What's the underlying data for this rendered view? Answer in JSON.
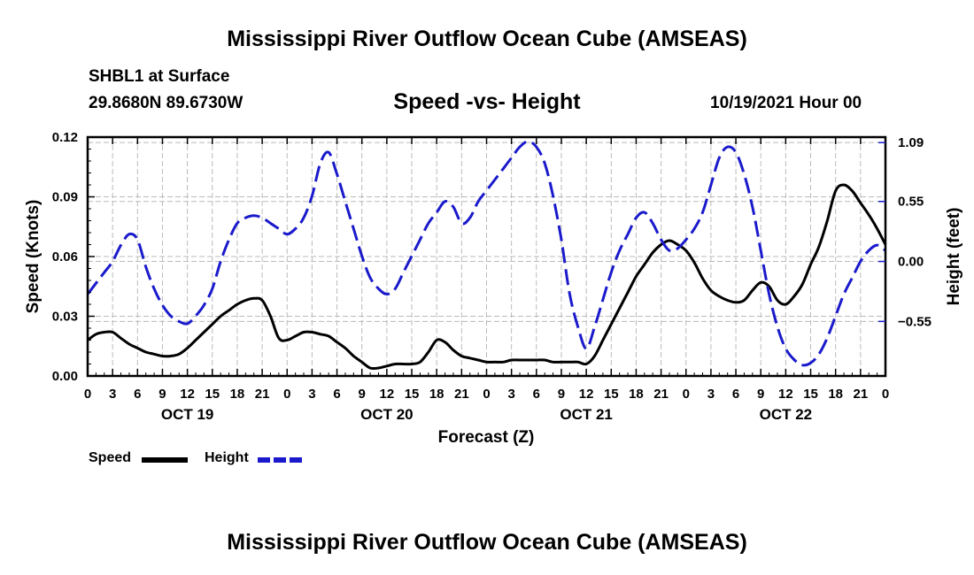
{
  "header": {
    "main_title": "Mississippi River Outflow Ocean Cube (AMSEAS)",
    "station": "SHBL1 at Surface",
    "coords": "29.8680N  89.6730W",
    "date": "10/19/2021 Hour 00"
  },
  "footer": {
    "title": "Mississippi River Outflow Ocean Cube (AMSEAS)"
  },
  "legend": {
    "speed_label": "Speed",
    "height_label": "Height"
  },
  "chart_data": {
    "type": "line",
    "title": "Speed -vs- Height",
    "xlabel": "Forecast (Z)",
    "ylabel": "Speed (Knots)",
    "y2label": "Height (feet)",
    "xlim": [
      0,
      96
    ],
    "ylim": [
      0,
      0.12
    ],
    "y2lim": [
      -1.05,
      1.14
    ],
    "x_ticks": [
      0,
      3,
      6,
      9,
      12,
      15,
      18,
      21,
      24,
      27,
      30,
      33,
      36,
      39,
      42,
      45,
      48,
      51,
      54,
      57,
      60,
      63,
      66,
      69,
      72,
      75,
      78,
      81,
      84,
      87,
      90,
      93,
      96
    ],
    "x_tick_labels": [
      "0",
      "3",
      "6",
      "9",
      "12",
      "15",
      "18",
      "21",
      "0",
      "3",
      "6",
      "9",
      "12",
      "15",
      "18",
      "21",
      "0",
      "3",
      "6",
      "9",
      "12",
      "15",
      "18",
      "21",
      "0",
      "3",
      "6",
      "9",
      "12",
      "15",
      "18",
      "21",
      "0"
    ],
    "day_labels": [
      {
        "x": 12,
        "label": "OCT 19"
      },
      {
        "x": 36,
        "label": "OCT 20"
      },
      {
        "x": 60,
        "label": "OCT 21"
      },
      {
        "x": 84,
        "label": "OCT 22"
      }
    ],
    "y_ticks": [
      0,
      0.03,
      0.06,
      0.09,
      0.12
    ],
    "y_tick_labels": [
      "0.00",
      "0.03",
      "0.06",
      "0.09",
      "0.12"
    ],
    "y2_ticks": [
      -0.55,
      0,
      0.55,
      1.09
    ],
    "y2_tick_labels": [
      "−0.55",
      "0.00",
      "0.55",
      "1.09"
    ],
    "grid": true,
    "colors": {
      "speed": "#000000",
      "height": "#1a1acc"
    },
    "series": [
      {
        "name": "Speed",
        "axis": "left",
        "x": [
          0,
          1,
          2,
          3,
          4,
          5,
          6,
          7,
          8,
          9,
          10,
          11,
          12,
          13,
          14,
          15,
          16,
          17,
          18,
          19,
          20,
          21,
          22,
          23,
          24,
          25,
          26,
          27,
          28,
          29,
          30,
          31,
          32,
          33,
          34,
          35,
          36,
          37,
          38,
          39,
          40,
          41,
          42,
          43,
          44,
          45,
          46,
          47,
          48,
          49,
          50,
          51,
          52,
          53,
          54,
          55,
          56,
          57,
          58,
          59,
          60,
          61,
          62,
          63,
          64,
          65,
          66,
          67,
          68,
          69,
          70,
          71,
          72,
          73,
          74,
          75,
          76,
          77,
          78,
          79,
          80,
          81,
          82,
          83,
          84,
          85,
          86,
          87,
          88,
          89,
          90,
          91,
          92,
          93,
          94,
          95,
          96
        ],
        "values": [
          0.018,
          0.021,
          0.022,
          0.022,
          0.019,
          0.016,
          0.014,
          0.012,
          0.011,
          0.01,
          0.01,
          0.011,
          0.014,
          0.018,
          0.022,
          0.026,
          0.03,
          0.033,
          0.036,
          0.038,
          0.039,
          0.038,
          0.03,
          0.019,
          0.018,
          0.02,
          0.022,
          0.022,
          0.021,
          0.02,
          0.017,
          0.014,
          0.01,
          0.007,
          0.004,
          0.004,
          0.005,
          0.006,
          0.006,
          0.006,
          0.007,
          0.012,
          0.018,
          0.017,
          0.013,
          0.01,
          0.009,
          0.008,
          0.007,
          0.007,
          0.007,
          0.008,
          0.008,
          0.008,
          0.008,
          0.008,
          0.007,
          0.007,
          0.007,
          0.007,
          0.006,
          0.01,
          0.018,
          0.026,
          0.034,
          0.042,
          0.05,
          0.056,
          0.062,
          0.066,
          0.068,
          0.066,
          0.063,
          0.057,
          0.049,
          0.043,
          0.04,
          0.038,
          0.037,
          0.038,
          0.043,
          0.047,
          0.045,
          0.038,
          0.036,
          0.04,
          0.046,
          0.056,
          0.065,
          0.078,
          0.093,
          0.096,
          0.093,
          0.087,
          0.081,
          0.074,
          0.066
        ]
      },
      {
        "name": "Height",
        "axis": "right",
        "x": [
          0,
          1,
          2,
          3,
          4,
          5,
          6,
          7,
          8,
          9,
          10,
          11,
          12,
          13,
          14,
          15,
          16,
          17,
          18,
          19,
          20,
          21,
          22,
          23,
          24,
          25,
          26,
          27,
          28,
          29,
          30,
          31,
          32,
          33,
          34,
          35,
          36,
          37,
          38,
          39,
          40,
          41,
          42,
          43,
          44,
          45,
          46,
          47,
          48,
          49,
          50,
          51,
          52,
          53,
          54,
          55,
          56,
          57,
          58,
          59,
          60,
          61,
          62,
          63,
          64,
          65,
          66,
          67,
          68,
          69,
          70,
          71,
          72,
          73,
          74,
          75,
          76,
          77,
          78,
          79,
          80,
          81,
          82,
          83,
          84,
          85,
          86,
          87,
          88,
          89,
          90,
          91,
          92,
          93,
          94,
          95,
          96
        ],
        "values": [
          -0.3,
          -0.2,
          -0.1,
          0.0,
          0.15,
          0.25,
          0.2,
          -0.05,
          -0.25,
          -0.4,
          -0.5,
          -0.55,
          -0.57,
          -0.5,
          -0.4,
          -0.25,
          0.0,
          0.2,
          0.35,
          0.4,
          0.42,
          0.4,
          0.35,
          0.3,
          0.25,
          0.3,
          0.4,
          0.6,
          0.9,
          1.0,
          0.8,
          0.55,
          0.3,
          0.05,
          -0.15,
          -0.25,
          -0.3,
          -0.25,
          -0.1,
          0.05,
          0.2,
          0.35,
          0.45,
          0.55,
          0.5,
          0.35,
          0.4,
          0.55,
          0.65,
          0.75,
          0.85,
          0.95,
          1.05,
          1.1,
          1.05,
          0.9,
          0.6,
          0.2,
          -0.3,
          -0.6,
          -0.8,
          -0.6,
          -0.35,
          -0.1,
          0.1,
          0.25,
          0.4,
          0.45,
          0.35,
          0.2,
          0.1,
          0.12,
          0.2,
          0.3,
          0.45,
          0.7,
          0.95,
          1.05,
          1.0,
          0.8,
          0.5,
          0.1,
          -0.3,
          -0.6,
          -0.8,
          -0.9,
          -0.95,
          -0.93,
          -0.85,
          -0.7,
          -0.5,
          -0.3,
          -0.15,
          0.0,
          0.1,
          0.15,
          0.1
        ]
      }
    ]
  }
}
